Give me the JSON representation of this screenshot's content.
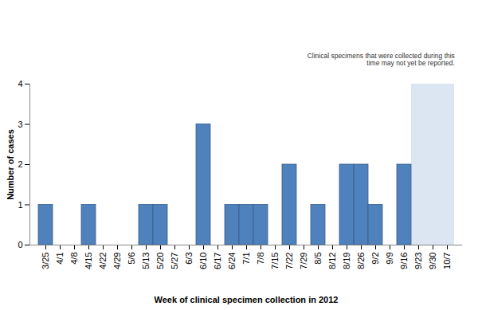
{
  "chart_data": {
    "type": "bar",
    "x_label": "Week of clinical specimen collection in 2012",
    "y_label": "Number of cases",
    "categories": [
      "3/25",
      "4/1",
      "4/8",
      "4/15",
      "4/22",
      "4/29",
      "5/6",
      "5/13",
      "5/20",
      "5/27",
      "6/3",
      "6/10",
      "6/17",
      "6/24",
      "7/1",
      "7/8",
      "7/15",
      "7/22",
      "7/29",
      "8/5",
      "8/12",
      "8/19",
      "8/26",
      "9/2",
      "9/9",
      "9/16",
      "9/23",
      "9/30",
      "10/7"
    ],
    "values": [
      1,
      0,
      0,
      1,
      0,
      0,
      0,
      1,
      1,
      0,
      0,
      3,
      0,
      1,
      1,
      1,
      0,
      2,
      0,
      1,
      0,
      2,
      2,
      1,
      0,
      2,
      0,
      0,
      0
    ],
    "color": "#4f81bd",
    "ylim": [
      0,
      4
    ],
    "yticks": [
      0,
      1,
      2,
      3,
      4
    ],
    "grid": false,
    "annotations": [
      {
        "text": "Clinical specimens that were collected during this\ntime may not yet be reported.",
        "from": "9/23",
        "to": "10/7"
      }
    ]
  }
}
